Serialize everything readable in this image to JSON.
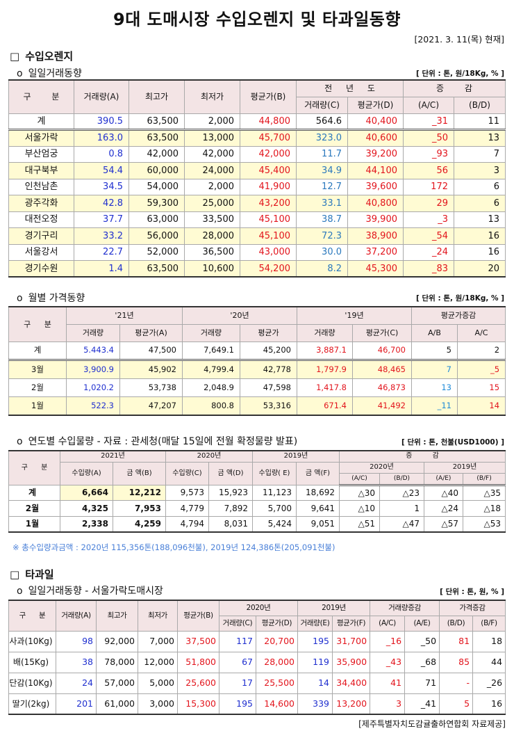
{
  "palette": {
    "blue": "#1f2fcf",
    "red": "#e2141c",
    "teal": "#2a78bd",
    "sky": "#1c8ad8",
    "header_bg": "#f3e4e5",
    "row_yellow": "#fffbd3",
    "note_blue": "#4a80d8"
  },
  "title": "9대 도매시장 수입오렌지 및 타과일동향",
  "date": "[2021. 3. 11(목) 현재]",
  "orange": {
    "marker": "□",
    "title": "수입오렌지",
    "daily": {
      "marker": "o",
      "title": "일일거래동향",
      "unit": "[ 단위 : 톤, 원/18Kg, % ]",
      "headers": {
        "category": "구 분",
        "volume_a": "거래량(A)",
        "max_price": "최고가",
        "min_price": "최저가",
        "avg_b": "평균가(B)",
        "prev_year": "전 년 도",
        "change": "증 감",
        "volume_c": "거래량(C)",
        "avg_d": "평균가(D)",
        "a_c": "(A/C)",
        "b_d": "(B/D)"
      },
      "rows": [
        [
          "계",
          "390.5",
          "63,500",
          "2,000",
          "44,800",
          "564.6",
          "40,400",
          "_31",
          "11"
        ],
        [
          "서울가락",
          "163.0",
          "63,500",
          "13,000",
          "45,700",
          "323.0",
          "40,600",
          "_50",
          "13"
        ],
        [
          "부산엄궁",
          "0.8",
          "42,000",
          "42,000",
          "42,000",
          "11.7",
          "39,200",
          "_93",
          "7"
        ],
        [
          "대구북부",
          "54.4",
          "60,000",
          "24,000",
          "45,400",
          "34.9",
          "44,100",
          "56",
          "3"
        ],
        [
          "인천남촌",
          "34.5",
          "54,000",
          "2,000",
          "41,900",
          "12.7",
          "39,600",
          "172",
          "6"
        ],
        [
          "광주각화",
          "42.8",
          "59,300",
          "25,000",
          "43,200",
          "33.1",
          "40,800",
          "29",
          "6"
        ],
        [
          "대전오정",
          "37.7",
          "63,000",
          "33,500",
          "45,100",
          "38.7",
          "39,900",
          "_3",
          "13"
        ],
        [
          "경기구리",
          "33.2",
          "56,000",
          "28,000",
          "45,100",
          "72.3",
          "38,900",
          "_54",
          "16"
        ],
        [
          "서울강서",
          "22.7",
          "52,000",
          "36,500",
          "43,000",
          "30.0",
          "37,200",
          "_24",
          "16"
        ],
        [
          "경기수원",
          "1.4",
          "63,500",
          "10,600",
          "54,200",
          "8.2",
          "45,300",
          "_83",
          "20"
        ]
      ]
    },
    "monthly": {
      "marker": "o",
      "title": "월별 가격동향",
      "unit": "[ 단위 : 톤, 원/18Kg, % ]",
      "headers": {
        "category": "구 분",
        "y21": "'21년",
        "y20": "'20년",
        "y19": "'19년",
        "avg_change": "평균가증감",
        "vol21": "거래량",
        "avg21": "평균가(A)",
        "vol20": "거래량",
        "avg20": "평균가",
        "vol19": "거래량",
        "avg19": "평균가(C)",
        "a_b": "A/B",
        "a_c": "A/C"
      },
      "rows": [
        [
          "계",
          "5.443.4",
          "47,500",
          "7,649.1",
          "45,200",
          "3,887.1",
          "46,700",
          "5",
          "2"
        ],
        [
          "3월",
          "3,900.9",
          "45,902",
          "4,799.4",
          "42,778",
          "1,797.9",
          "48,465",
          "7",
          "_5"
        ],
        [
          "2월",
          "1,020.2",
          "53,738",
          "2,048.9",
          "47,598",
          "1,417.8",
          "46,873",
          "13",
          "15"
        ],
        [
          "1월",
          "522.3",
          "47,207",
          "800.8",
          "53,316",
          "671.4",
          "41,492",
          "_11",
          "14"
        ]
      ]
    },
    "yearly": {
      "marker": "o",
      "title": "연도별 수입물량 - 자료 : 관세청(매달 15일에 전월 확정물량 발표)",
      "unit": "[ 단위 : 톤, 천불(USD1000) ]",
      "headers": {
        "category": "구 분",
        "y2021": "2021년",
        "y2020": "2020년",
        "y2019": "2019년",
        "change": "증 감",
        "import_a": "수입량(A)",
        "amount_b": "금 액(B)",
        "import_c": "수입량(C)",
        "amount_d": "금 액(D)",
        "import_e": "수입량( E)",
        "amount_f": "금 액(F)",
        "ch2020": "2020년",
        "ch2019": "2019년",
        "a_c": "(A/C)",
        "b_d": "(B/D)",
        "a_e": "(A/E)",
        "b_f": "(B/F)"
      },
      "rows": [
        [
          "계",
          "6,664",
          "12,212",
          "9,573",
          "15,923",
          "11,123",
          "18,692",
          "△30",
          "△23",
          "△40",
          "△35"
        ],
        [
          "2월",
          "4,325",
          "7,953",
          "4,779",
          "7,892",
          "5,700",
          "9,641",
          "△10",
          "1",
          "△24",
          "△18"
        ],
        [
          "1월",
          "2,338",
          "4,259",
          "4,794",
          "8,031",
          "5,424",
          "9,051",
          "△51",
          "△47",
          "△57",
          "△53"
        ]
      ],
      "note": "※ 총수입량과금액 : 2020년 115,356톤(188,096천불),  2019년 124,386톤(205,091천불)"
    }
  },
  "other_fruit": {
    "marker": "□",
    "title": "타과일",
    "daily": {
      "marker": "o",
      "title": "일일거래동향 - 서울가락도매시장",
      "unit": "[ 단위 : 톤, 원, % ]",
      "headers": {
        "category": "구 분",
        "vol_a": "거래량(A)",
        "max_price": "최고가",
        "min_price": "최저가",
        "avg_b": "평균가(B)",
        "y2020": "2020년",
        "y2019": "2019년",
        "vol_change": "거래량증감",
        "price_change": "가격증감",
        "vol_c": "거래량(C)",
        "avg_d": "평균가(D)",
        "vol_e": "거래량(E)",
        "avg_f": "평균가(F)",
        "a_c": "(A/C)",
        "a_e": "(A/E)",
        "b_d": "(B/D)",
        "b_f": "(B/F)"
      },
      "rows": [
        [
          "사과(10Kg)",
          "98",
          "92,000",
          "7,000",
          "37,500",
          "117",
          "20,700",
          "195",
          "31,700",
          "_16",
          "_50",
          "81",
          "18"
        ],
        [
          "배(15Kg)",
          "38",
          "78,000",
          "12,000",
          "51,800",
          "67",
          "28,000",
          "119",
          "35,900",
          "_43",
          "_68",
          "85",
          "44"
        ],
        [
          "단감(10Kg)",
          "24",
          "57,000",
          "5,000",
          "25,600",
          "17",
          "25,500",
          "14",
          "34,400",
          "41",
          "71",
          "-",
          "_26"
        ],
        [
          "딸기(2kg)",
          "201",
          "61,000",
          "3,000",
          "15,300",
          "195",
          "14,600",
          "339",
          "13,200",
          "3",
          "_41",
          "5",
          "16"
        ]
      ]
    }
  },
  "source": "[제주특별자치도감귤출하연합회 자료제공]"
}
